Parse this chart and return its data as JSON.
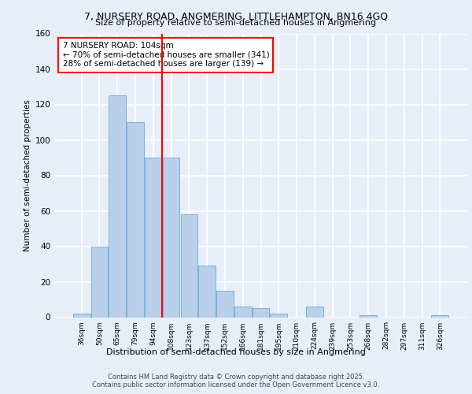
{
  "title1": "7, NURSERY ROAD, ANGMERING, LITTLEHAMPTON, BN16 4GQ",
  "title2": "Size of property relative to semi-detached houses in Angmering",
  "xlabel": "Distribution of semi-detached houses by size in Angmering",
  "ylabel": "Number of semi-detached properties",
  "categories": [
    "36sqm",
    "50sqm",
    "65sqm",
    "79sqm",
    "94sqm",
    "108sqm",
    "123sqm",
    "137sqm",
    "152sqm",
    "166sqm",
    "181sqm",
    "195sqm",
    "210sqm",
    "224sqm",
    "239sqm",
    "253sqm",
    "268sqm",
    "282sqm",
    "297sqm",
    "311sqm",
    "326sqm"
  ],
  "values": [
    2,
    40,
    125,
    110,
    90,
    90,
    58,
    29,
    15,
    6,
    5,
    2,
    0,
    6,
    0,
    0,
    1,
    0,
    0,
    0,
    1
  ],
  "bar_color": "#b8d0ea",
  "bar_edge_color": "#6aaad4",
  "annotation_title": "7 NURSERY ROAD: 104sqm",
  "annotation_line1": "← 70% of semi-detached houses are smaller (341)",
  "annotation_line2": "28% of semi-detached houses are larger (139) →",
  "ylim": [
    0,
    160
  ],
  "yticks": [
    0,
    20,
    40,
    60,
    80,
    100,
    120,
    140,
    160
  ],
  "background_color": "#e8eef8",
  "grid_color": "#ffffff",
  "footer1": "Contains HM Land Registry data © Crown copyright and database right 2025.",
  "footer2": "Contains public sector information licensed under the Open Government Licence v3.0."
}
